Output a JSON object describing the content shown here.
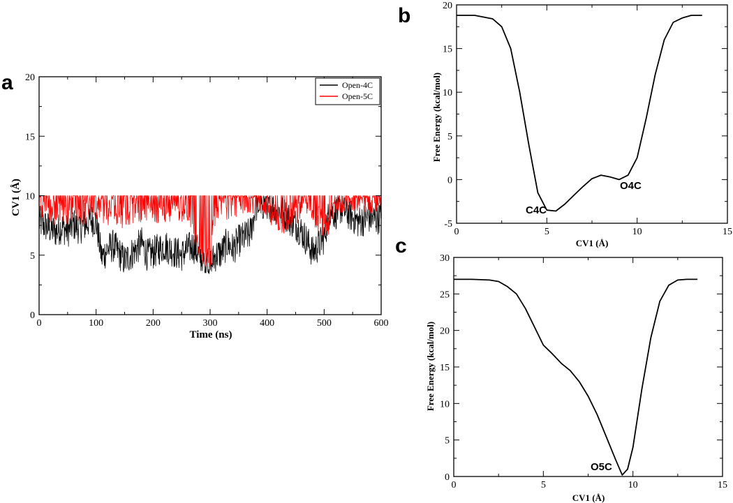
{
  "chart_data": [
    {
      "panel": "a",
      "type": "line",
      "xlabel": "Time (ns)",
      "ylabel": "CV1 (Å)",
      "xlim": [
        0,
        600
      ],
      "ylim": [
        0,
        20
      ],
      "xticks": [
        0,
        100,
        200,
        300,
        400,
        500,
        600
      ],
      "yticks": [
        0,
        5,
        10,
        15,
        20
      ],
      "legend": "top-right",
      "series": [
        {
          "name": "Open-4C",
          "color": "#000000",
          "x": [
            0,
            10,
            20,
            30,
            40,
            50,
            60,
            70,
            80,
            90,
            100,
            110,
            120,
            130,
            140,
            150,
            160,
            170,
            180,
            190,
            200,
            210,
            220,
            230,
            240,
            250,
            260,
            270,
            280,
            290,
            300,
            310,
            320,
            330,
            340,
            350,
            360,
            370,
            380,
            390,
            400,
            410,
            420,
            430,
            440,
            450,
            460,
            470,
            480,
            490,
            500,
            510,
            520,
            530,
            540,
            550,
            560,
            570,
            580,
            590,
            600
          ],
          "values": [
            7.8,
            7.5,
            7.2,
            7.0,
            7.4,
            7.0,
            7.6,
            7.3,
            7.5,
            8.0,
            7.8,
            4.8,
            5.5,
            5.8,
            5.2,
            4.5,
            5.0,
            5.5,
            6.0,
            5.0,
            5.2,
            5.5,
            5.8,
            5.5,
            5.2,
            5.0,
            5.5,
            5.8,
            5.0,
            4.5,
            4.2,
            5.0,
            5.2,
            6.0,
            5.5,
            6.2,
            6.5,
            6.8,
            9.0,
            9.2,
            9.4,
            9.0,
            8.8,
            8.5,
            8.0,
            7.6,
            7.0,
            6.2,
            5.2,
            5.8,
            6.5,
            8.8,
            8.5,
            9.0,
            8.6,
            8.2,
            7.8,
            8.0,
            8.2,
            8.0,
            8.3
          ]
        },
        {
          "name": "Open-5C",
          "color": "#ff0000",
          "x": [
            0,
            10,
            20,
            30,
            40,
            50,
            60,
            70,
            80,
            90,
            100,
            110,
            120,
            130,
            140,
            150,
            160,
            170,
            180,
            190,
            200,
            210,
            220,
            230,
            240,
            250,
            260,
            270,
            280,
            290,
            300,
            310,
            320,
            330,
            340,
            350,
            360,
            370,
            380,
            390,
            400,
            410,
            420,
            430,
            440,
            450,
            460,
            470,
            480,
            490,
            500,
            510,
            520,
            530,
            540,
            550,
            560,
            570,
            580,
            590,
            600
          ],
          "values": [
            9.5,
            9.2,
            8.8,
            8.5,
            9.0,
            8.8,
            9.3,
            9.0,
            8.5,
            9.5,
            9.2,
            9.0,
            8.5,
            9.0,
            8.6,
            8.4,
            8.8,
            9.0,
            8.8,
            9.2,
            9.0,
            8.8,
            9.0,
            8.8,
            9.2,
            9.0,
            8.8,
            6.5,
            5.5,
            5.2,
            4.5,
            9.2,
            9.5,
            9.0,
            9.3,
            9.4,
            9.6,
            9.5,
            9.7,
            9.5,
            9.4,
            8.5,
            8.0,
            7.8,
            8.2,
            8.4,
            9.2,
            9.5,
            8.8,
            8.0,
            7.5,
            7.8,
            9.6,
            9.8,
            9.7,
            9.8,
            9.6,
            9.8,
            9.7,
            9.8,
            9.9
          ]
        }
      ]
    },
    {
      "panel": "b",
      "type": "line",
      "xlabel": "CV1 (Å)",
      "ylabel": "Free Energy (kcal/mol)",
      "xlim": [
        0,
        15
      ],
      "ylim": [
        -5,
        20
      ],
      "xticks": [
        0,
        5,
        10,
        15
      ],
      "yticks": [
        -5,
        0,
        5,
        10,
        15,
        20
      ],
      "annotations": [
        {
          "text": "C4C",
          "x": 4.9,
          "y": -3.6
        },
        {
          "text": "O4C",
          "x": 9.3,
          "y": -0.6
        }
      ],
      "series": [
        {
          "name": "",
          "color": "#000000",
          "x": [
            0,
            1,
            2,
            2.5,
            3,
            3.5,
            4,
            4.5,
            5,
            5.5,
            6,
            6.5,
            7,
            7.5,
            8,
            8.5,
            9,
            9.5,
            10,
            10.5,
            11,
            11.5,
            12,
            12.5,
            13,
            13.6
          ],
          "values": [
            18.8,
            18.8,
            18.4,
            17.5,
            15,
            10,
            4,
            -1.5,
            -3.5,
            -3.6,
            -2.8,
            -1.8,
            -0.8,
            0.1,
            0.5,
            0.3,
            0.0,
            0.5,
            2.5,
            7,
            12,
            16,
            18,
            18.5,
            18.8,
            18.8
          ]
        }
      ]
    },
    {
      "panel": "c",
      "type": "line",
      "xlabel": "CV1 (Å)",
      "ylabel": "Free Energy (kcal/mol)",
      "xlim": [
        0,
        15
      ],
      "ylim": [
        0,
        30
      ],
      "xticks": [
        0,
        5,
        10,
        15
      ],
      "yticks": [
        0,
        5,
        10,
        15,
        20,
        25,
        30
      ],
      "annotations": [
        {
          "text": "O5C",
          "x": 8.2,
          "y": 0.7
        }
      ],
      "series": [
        {
          "name": "",
          "color": "#000000",
          "x": [
            0,
            1,
            2,
            2.5,
            3,
            3.5,
            4,
            4.5,
            5,
            5.5,
            6,
            6.5,
            7,
            7.5,
            8,
            8.5,
            9,
            9.4,
            9.7,
            10,
            10.5,
            11,
            11.5,
            12,
            12.5,
            13,
            13.6
          ],
          "values": [
            27,
            27,
            26.9,
            26.7,
            26,
            25,
            23,
            20.5,
            18,
            16.8,
            15.5,
            14.5,
            13,
            11,
            8.5,
            5.5,
            2.5,
            0.2,
            1,
            4,
            12,
            19,
            24,
            26.2,
            26.9,
            27,
            27
          ]
        }
      ]
    }
  ]
}
